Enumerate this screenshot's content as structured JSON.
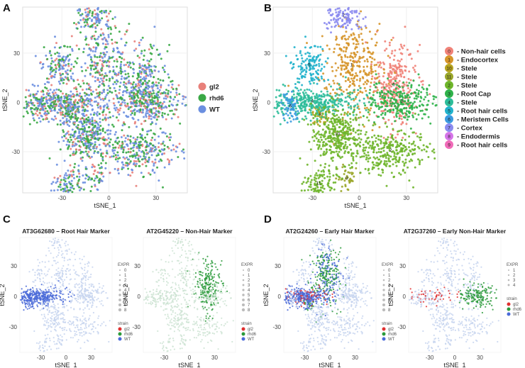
{
  "panels": [
    "A",
    "B",
    "C",
    "D"
  ],
  "chart_data": [
    {
      "id": "A",
      "type": "scatter",
      "xlabel": "tSNE_1",
      "ylabel": "tSNE_2",
      "xticks": [
        -30,
        0,
        30
      ],
      "yticks": [
        30,
        0,
        -30
      ],
      "legend": [
        {
          "label": "gl2",
          "color": "#e8807a"
        },
        {
          "label": "rhd6",
          "color": "#3aa845"
        },
        {
          "label": "WT",
          "color": "#6b8fe0"
        }
      ]
    },
    {
      "id": "B",
      "type": "scatter",
      "xlabel": "tSNE_1",
      "ylabel": "tSNE_2",
      "xticks": [
        -30,
        0,
        30
      ],
      "yticks": [
        30,
        0,
        -30
      ],
      "legend": [
        {
          "label": "0",
          "name": "- Non-hair cells",
          "color": "#f08278"
        },
        {
          "label": "1",
          "name": "- Endocortex",
          "color": "#d6952a"
        },
        {
          "label": "10",
          "name": "- Stele",
          "color": "#b7a41e"
        },
        {
          "label": "11",
          "name": "- Stele",
          "color": "#9aa62a"
        },
        {
          "label": "2",
          "name": "- Stele",
          "color": "#6eb52a"
        },
        {
          "label": "3",
          "name": "- Root Cap",
          "color": "#2fb24a"
        },
        {
          "label": "4",
          "name": "- Stele",
          "color": "#2dbd9a"
        },
        {
          "label": "5",
          "name": "- Root hair cells",
          "color": "#22b3cc"
        },
        {
          "label": "6",
          "name": "- Meristem Cells",
          "color": "#3b9be0"
        },
        {
          "label": "7",
          "name": "- Cortex",
          "color": "#8b8bef"
        },
        {
          "label": "8",
          "name": "- Endodermis",
          "color": "#d574e8"
        },
        {
          "label": "9",
          "name": "- Root hair cells",
          "color": "#f06ab8"
        }
      ]
    },
    {
      "id": "C1",
      "type": "scatter",
      "title": "AT3G62680 – Root Hair Marker",
      "xlabel": "tSNE_1",
      "ylabel": "tSNE_2",
      "xticks": [
        -30,
        0,
        30
      ],
      "yticks": [
        30,
        0,
        -30
      ],
      "expr_title": "EXPR",
      "expr_levels": [
        "0",
        "1",
        "2",
        "3",
        "4",
        "5",
        "6",
        "7",
        "8"
      ],
      "strain_title": "strain",
      "strain": [
        {
          "label": "gl2",
          "color": "#e03030"
        },
        {
          "label": "rhd6",
          "color": "#2a9a3a"
        },
        {
          "label": "WT",
          "color": "#4a6ad8"
        }
      ]
    },
    {
      "id": "C2",
      "type": "scatter",
      "title": "AT2G45220 – Non-Hair Marker",
      "xlabel": "tSNE_1",
      "ylabel": "tSNE_2",
      "xticks": [
        -30,
        0,
        30
      ],
      "yticks": [
        30,
        0,
        -30
      ],
      "expr_title": "EXPR",
      "expr_levels": [
        "0",
        "1",
        "2",
        "3",
        "4",
        "5",
        "6",
        "7",
        "8"
      ],
      "strain_title": "strain",
      "strain": [
        {
          "label": "gl2",
          "color": "#e03030"
        },
        {
          "label": "rhd6",
          "color": "#2a9a3a"
        },
        {
          "label": "WT",
          "color": "#4a6ad8"
        }
      ]
    },
    {
      "id": "D1",
      "type": "scatter",
      "title": "AT2G24260 – Early Hair Marker",
      "xlabel": "tSNE_1",
      "ylabel": "tSNE_2",
      "xticks": [
        -30,
        0,
        30
      ],
      "yticks": [
        30,
        0,
        -30
      ],
      "expr_title": "EXPR",
      "expr_levels": [
        "0",
        "1",
        "2",
        "3",
        "4",
        "5",
        "6",
        "7",
        "8"
      ],
      "strain_title": "strain",
      "strain": [
        {
          "label": "gl2",
          "color": "#e03030"
        },
        {
          "label": "rhd6",
          "color": "#2a9a3a"
        },
        {
          "label": "WT",
          "color": "#4a6ad8"
        }
      ]
    },
    {
      "id": "D2",
      "type": "scatter",
      "title": "AT2G37260 – Early Non-Hair Marker",
      "xlabel": "tSNE_1",
      "ylabel": "tSNE_2",
      "xticks": [
        -30,
        0,
        30
      ],
      "yticks": [
        30,
        0,
        -30
      ],
      "expr_title": "EXPR",
      "expr_levels": [
        "1",
        "2",
        "3",
        "4"
      ],
      "strain_title": "strain",
      "strain": [
        {
          "label": "gl2",
          "color": "#e03030"
        },
        {
          "label": "rhd6",
          "color": "#2a9a3a"
        },
        {
          "label": "WT",
          "color": "#4a6ad8"
        }
      ]
    }
  ]
}
